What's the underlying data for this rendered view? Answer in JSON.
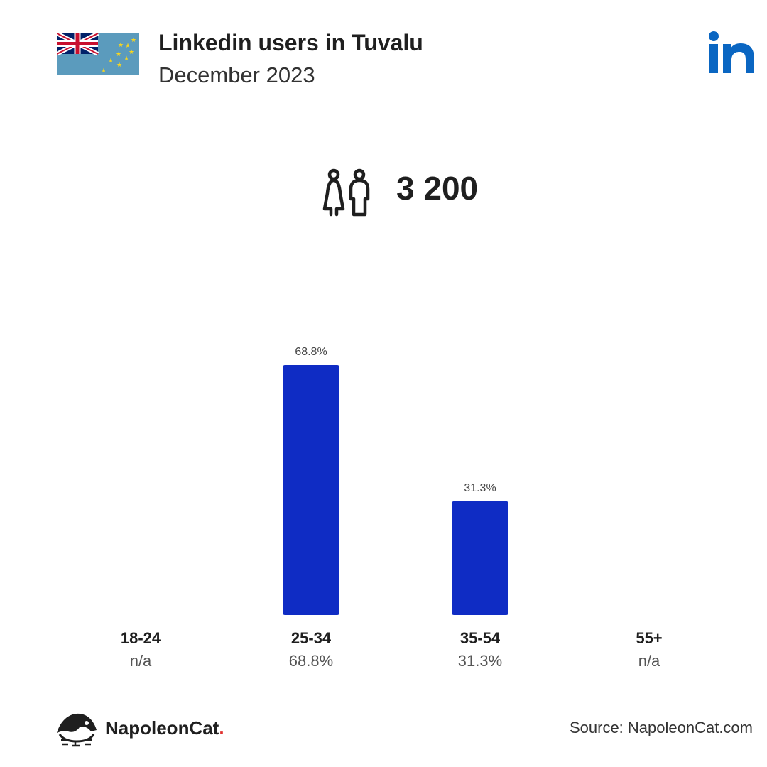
{
  "header": {
    "title": "Linkedin users in Tuvalu",
    "subtitle": "December 2023"
  },
  "total": "3 200",
  "icons": {
    "flag": "tuvalu-flag-icon",
    "platform": "linkedin-logo-icon",
    "audience": "people-icon",
    "brand": "napoleoncat-logo-icon"
  },
  "colors": {
    "bar": "#0f2cc4",
    "linkedin": "#0a66c2",
    "flag_blue": "#5b9bbd",
    "flag_star": "#f6d520",
    "brand_dot": "#e0312f"
  },
  "chart_data": {
    "type": "bar",
    "categories": [
      "18-24",
      "25-34",
      "35-54",
      "55+"
    ],
    "values": [
      null,
      68.8,
      31.3,
      null
    ],
    "value_labels": [
      "n/a",
      "68.8%",
      "31.3%",
      "n/a"
    ],
    "bar_labels": [
      "",
      "68.8%",
      "31.3%",
      ""
    ],
    "ylim": [
      0,
      68.8
    ],
    "grid": false
  },
  "footer": {
    "brand": "NapoleonCat",
    "brand_dot": ".",
    "source": "Source: NapoleonCat.com"
  }
}
